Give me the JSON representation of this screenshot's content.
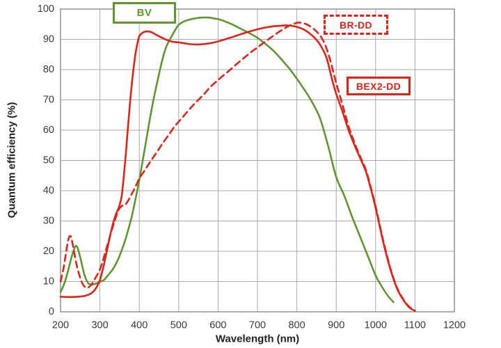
{
  "colors": {
    "red": "#e02318",
    "green": "#5f9630",
    "grid": "#a9a9a9",
    "axis_border": "#8a8a8a",
    "tick_text": "#3a3a3a",
    "title_text": "#222222",
    "background": "#ffffff"
  },
  "chart_data": {
    "type": "line",
    "title": "",
    "xlabel": "Wavelength (nm)",
    "ylabel": "Quantum efficiency (%)",
    "xlim": [
      200,
      1200
    ],
    "ylim": [
      0,
      100
    ],
    "xticks": [
      200,
      300,
      400,
      500,
      600,
      700,
      800,
      900,
      1000,
      1100,
      1200
    ],
    "yticks": [
      0,
      10,
      20,
      30,
      40,
      50,
      60,
      70,
      80,
      90,
      100
    ],
    "grid": true,
    "legend_position": "labeled boxes drawn on plot",
    "series": [
      {
        "name": "BV",
        "color": "#5f9630",
        "line_style": "solid",
        "points": [
          [
            200,
            6.5
          ],
          [
            210,
            9.5
          ],
          [
            220,
            14
          ],
          [
            230,
            19
          ],
          [
            240,
            21.8
          ],
          [
            250,
            18
          ],
          [
            260,
            12.5
          ],
          [
            270,
            9.5
          ],
          [
            280,
            9
          ],
          [
            290,
            9.3
          ],
          [
            300,
            9.9
          ],
          [
            310,
            10.5
          ],
          [
            320,
            12
          ],
          [
            335,
            14.5
          ],
          [
            350,
            18.5
          ],
          [
            365,
            24
          ],
          [
            380,
            31
          ],
          [
            390,
            37
          ],
          [
            400,
            43.5
          ],
          [
            410,
            51
          ],
          [
            420,
            58.5
          ],
          [
            430,
            66
          ],
          [
            440,
            72.5
          ],
          [
            450,
            78.5
          ],
          [
            460,
            84
          ],
          [
            470,
            88
          ],
          [
            480,
            90.5
          ],
          [
            490,
            92.8
          ],
          [
            500,
            94.8
          ],
          [
            515,
            96
          ],
          [
            530,
            96.6
          ],
          [
            545,
            97
          ],
          [
            560,
            97.2
          ],
          [
            575,
            97.2
          ],
          [
            590,
            96.9
          ],
          [
            605,
            96.5
          ],
          [
            620,
            95.8
          ],
          [
            635,
            95
          ],
          [
            650,
            94
          ],
          [
            665,
            93
          ],
          [
            680,
            92
          ],
          [
            700,
            90.5
          ],
          [
            720,
            88.5
          ],
          [
            740,
            86.3
          ],
          [
            760,
            83.5
          ],
          [
            780,
            80.5
          ],
          [
            800,
            77
          ],
          [
            820,
            73.2
          ],
          [
            840,
            69
          ],
          [
            860,
            63.5
          ],
          [
            880,
            54.5
          ],
          [
            900,
            44.5
          ],
          [
            920,
            38.5
          ],
          [
            940,
            31.5
          ],
          [
            960,
            25
          ],
          [
            980,
            18.5
          ],
          [
            1000,
            12
          ],
          [
            1015,
            8.5
          ],
          [
            1030,
            5.5
          ],
          [
            1045,
            3.2
          ]
        ]
      },
      {
        "name": "BR-DD",
        "color": "#e02318",
        "line_style": "dashed",
        "points": [
          [
            200,
            10
          ],
          [
            207,
            14
          ],
          [
            214,
            19.5
          ],
          [
            220,
            24
          ],
          [
            226,
            24.9
          ],
          [
            232,
            21.5
          ],
          [
            240,
            16
          ],
          [
            248,
            12
          ],
          [
            255,
            9.5
          ],
          [
            262,
            8.2
          ],
          [
            270,
            8
          ],
          [
            280,
            9.3
          ],
          [
            290,
            11.5
          ],
          [
            300,
            14
          ],
          [
            310,
            18
          ],
          [
            320,
            22.5
          ],
          [
            330,
            27
          ],
          [
            340,
            31
          ],
          [
            348,
            33.8
          ],
          [
            356,
            35
          ],
          [
            364,
            35.3
          ],
          [
            372,
            36.8
          ],
          [
            382,
            39.2
          ],
          [
            392,
            41.8
          ],
          [
            400,
            44
          ],
          [
            415,
            47
          ],
          [
            430,
            50
          ],
          [
            445,
            52.8
          ],
          [
            460,
            55.8
          ],
          [
            475,
            58.5
          ],
          [
            490,
            61.3
          ],
          [
            505,
            63.5
          ],
          [
            520,
            65.8
          ],
          [
            535,
            68
          ],
          [
            550,
            70
          ],
          [
            565,
            72
          ],
          [
            580,
            74.2
          ],
          [
            595,
            76
          ],
          [
            610,
            77.7
          ],
          [
            625,
            79.3
          ],
          [
            640,
            81
          ],
          [
            655,
            82.7
          ],
          [
            670,
            84.3
          ],
          [
            685,
            85.9
          ],
          [
            700,
            87.3
          ],
          [
            715,
            88.8
          ],
          [
            730,
            90.2
          ],
          [
            745,
            91.6
          ],
          [
            760,
            92.9
          ],
          [
            775,
            94.1
          ],
          [
            790,
            95
          ],
          [
            802,
            95.5
          ],
          [
            814,
            95.4
          ],
          [
            826,
            94.9
          ],
          [
            838,
            93.9
          ],
          [
            850,
            92.6
          ],
          [
            862,
            90.7
          ],
          [
            874,
            87.5
          ],
          [
            886,
            82.5
          ],
          [
            898,
            76.5
          ],
          [
            908,
            72
          ],
          [
            920,
            66.5
          ],
          [
            932,
            61
          ],
          [
            946,
            56
          ],
          [
            960,
            51.5
          ],
          [
            975,
            47
          ],
          [
            985,
            42.5
          ],
          [
            995,
            37.5
          ],
          [
            1005,
            32
          ],
          [
            1015,
            26
          ],
          [
            1025,
            20.5
          ],
          [
            1040,
            13.3
          ],
          [
            1055,
            7.8
          ],
          [
            1070,
            4.2
          ],
          [
            1085,
            1.7
          ],
          [
            1100,
            0.4
          ]
        ]
      },
      {
        "name": "BEX2-DD",
        "color": "#e02318",
        "line_style": "solid",
        "points": [
          [
            200,
            5
          ],
          [
            215,
            4.9
          ],
          [
            230,
            4.9
          ],
          [
            245,
            5
          ],
          [
            260,
            5.2
          ],
          [
            270,
            5.6
          ],
          [
            280,
            6.3
          ],
          [
            290,
            7.8
          ],
          [
            300,
            10.5
          ],
          [
            310,
            15.5
          ],
          [
            320,
            21.5
          ],
          [
            330,
            27.5
          ],
          [
            340,
            32
          ],
          [
            348,
            34.5
          ],
          [
            355,
            38
          ],
          [
            360,
            44
          ],
          [
            365,
            51
          ],
          [
            370,
            59
          ],
          [
            375,
            67
          ],
          [
            380,
            74
          ],
          [
            385,
            80
          ],
          [
            390,
            85
          ],
          [
            395,
            88.5
          ],
          [
            400,
            91
          ],
          [
            410,
            92.3
          ],
          [
            420,
            92.6
          ],
          [
            430,
            92.4
          ],
          [
            440,
            91.7
          ],
          [
            455,
            90.7
          ],
          [
            470,
            89.8
          ],
          [
            485,
            89.2
          ],
          [
            500,
            89
          ],
          [
            515,
            88.7
          ],
          [
            530,
            88.4
          ],
          [
            545,
            88.3
          ],
          [
            560,
            88.4
          ],
          [
            575,
            88.6
          ],
          [
            590,
            89
          ],
          [
            605,
            89.5
          ],
          [
            620,
            90.1
          ],
          [
            640,
            90.9
          ],
          [
            660,
            91.8
          ],
          [
            680,
            92.6
          ],
          [
            700,
            93.3
          ],
          [
            720,
            93.9
          ],
          [
            740,
            94.3
          ],
          [
            760,
            94.5
          ],
          [
            775,
            94.6
          ],
          [
            790,
            94.4
          ],
          [
            800,
            94.1
          ],
          [
            815,
            93.4
          ],
          [
            830,
            92.2
          ],
          [
            845,
            90.5
          ],
          [
            860,
            88
          ],
          [
            875,
            84
          ],
          [
            890,
            76.5
          ],
          [
            900,
            72
          ],
          [
            915,
            66.5
          ],
          [
            930,
            60.5
          ],
          [
            945,
            55.5
          ],
          [
            960,
            51
          ],
          [
            975,
            46.5
          ],
          [
            985,
            42
          ],
          [
            995,
            37
          ],
          [
            1005,
            31.5
          ],
          [
            1015,
            25.5
          ],
          [
            1025,
            20
          ],
          [
            1040,
            13
          ],
          [
            1055,
            7.5
          ],
          [
            1070,
            4
          ],
          [
            1085,
            1.5
          ],
          [
            1100,
            0.3
          ]
        ]
      }
    ],
    "annotations": [
      {
        "text": "BV",
        "border": "solid",
        "color": "#5f9630"
      },
      {
        "text": "BR-DD",
        "border": "dashed",
        "color": "#e02318"
      },
      {
        "text": "BEX2-DD",
        "border": "solid",
        "color": "#e02318"
      }
    ]
  }
}
